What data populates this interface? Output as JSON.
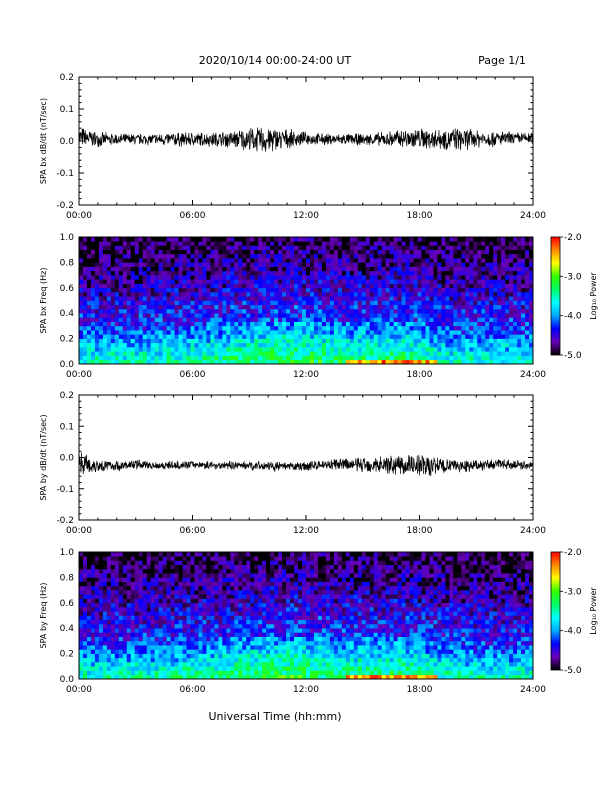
{
  "header": {
    "title": "2020/10/14  00:00-24:00 UT",
    "page": "Page 1/1"
  },
  "x_axis_title": "Universal Time (hh:mm)",
  "chart_data": [
    {
      "type": "line",
      "ylabel": "SPA bx dB/dt (nT/sec)",
      "xlim": [
        "00:00",
        "24:00"
      ],
      "ylim": [
        -0.2,
        0.2
      ],
      "x_ticks": [
        "00:00",
        "06:00",
        "12:00",
        "18:00",
        "24:00"
      ],
      "y_ticks": [
        "-0.2",
        "-0.1",
        "0.0",
        "0.1",
        "0.2"
      ],
      "series": [
        {
          "x_hours": [
            0,
            1,
            2,
            3,
            4,
            5,
            6,
            7,
            8,
            9,
            10,
            11,
            12,
            13,
            14,
            15,
            16,
            17,
            18,
            19,
            20,
            21,
            22,
            23,
            24
          ],
          "upper": [
            0.05,
            0.03,
            0.025,
            0.025,
            0.025,
            0.03,
            0.03,
            0.03,
            0.035,
            0.045,
            0.05,
            0.04,
            0.03,
            0.025,
            0.025,
            0.025,
            0.03,
            0.04,
            0.045,
            0.045,
            0.045,
            0.04,
            0.035,
            0.03,
            0.03
          ],
          "lower": [
            -0.025,
            -0.02,
            -0.015,
            -0.015,
            -0.015,
            -0.02,
            -0.02,
            -0.02,
            -0.025,
            -0.035,
            -0.045,
            -0.025,
            -0.015,
            -0.015,
            -0.015,
            -0.015,
            -0.02,
            -0.025,
            -0.03,
            -0.03,
            -0.035,
            -0.025,
            -0.02,
            -0.015,
            -0.01
          ]
        }
      ]
    },
    {
      "type": "heatmap",
      "ylabel": "SPA bx Freq (Hz)",
      "xlim": [
        "00:00",
        "24:00"
      ],
      "ylim": [
        0.0,
        1.0
      ],
      "x_ticks": [
        "00:00",
        "06:00",
        "12:00",
        "18:00",
        "24:00"
      ],
      "y_ticks": [
        "0.0",
        "0.2",
        "0.4",
        "0.6",
        "0.8",
        "1.0"
      ],
      "colorbar": {
        "label": "Log₁₀ Power",
        "range": [
          -5.0,
          -2.0
        ],
        "ticks": [
          "-2.0",
          "-3.0",
          "-4.0",
          "-5.0"
        ],
        "colors": [
          "#000000",
          "#6a00b8",
          "#0000ff",
          "#00aaff",
          "#00ffff",
          "#00ff66",
          "#33ff00",
          "#ffff00",
          "#ff8800",
          "#ff0000"
        ]
      }
    },
    {
      "type": "line",
      "ylabel": "SPA by dB/dt (nT/sec)",
      "xlim": [
        "00:00",
        "24:00"
      ],
      "ylim": [
        -0.2,
        0.2
      ],
      "x_ticks": [
        "00:00",
        "06:00",
        "12:00",
        "18:00",
        "24:00"
      ],
      "y_ticks": [
        "-0.2",
        "-0.1",
        "0.0",
        "0.1",
        "0.2"
      ],
      "series": [
        {
          "x_hours": [
            0,
            0.5,
            1,
            2,
            3,
            4,
            5,
            6,
            7,
            8,
            9,
            10,
            11,
            12,
            13,
            14,
            15,
            16,
            17,
            18,
            19,
            20,
            21,
            22,
            23,
            24
          ],
          "upper": [
            0.03,
            0.01,
            0.0,
            -0.01,
            -0.005,
            -0.01,
            -0.01,
            -0.01,
            -0.01,
            -0.01,
            -0.01,
            -0.01,
            -0.015,
            -0.01,
            -0.005,
            0.0,
            0.005,
            0.01,
            0.015,
            0.02,
            0.005,
            -0.005,
            -0.005,
            -0.005,
            -0.005,
            -0.01
          ],
          "lower": [
            -0.05,
            -0.06,
            -0.05,
            -0.045,
            -0.04,
            -0.04,
            -0.04,
            -0.035,
            -0.04,
            -0.04,
            -0.04,
            -0.045,
            -0.045,
            -0.045,
            -0.04,
            -0.045,
            -0.05,
            -0.055,
            -0.06,
            -0.07,
            -0.06,
            -0.05,
            -0.045,
            -0.04,
            -0.04,
            -0.04
          ]
        }
      ]
    },
    {
      "type": "heatmap",
      "ylabel": "SPA by Freq (Hz)",
      "xlim": [
        "00:00",
        "24:00"
      ],
      "ylim": [
        0.0,
        1.0
      ],
      "x_ticks": [
        "00:00",
        "06:00",
        "12:00",
        "18:00",
        "24:00"
      ],
      "y_ticks": [
        "0.0",
        "0.2",
        "0.4",
        "0.6",
        "0.8",
        "1.0"
      ],
      "colorbar": {
        "label": "Log₁₀ Power",
        "range": [
          -5.0,
          -2.0
        ],
        "ticks": [
          "-2.0",
          "-3.0",
          "-4.0",
          "-5.0"
        ],
        "colors": [
          "#000000",
          "#6a00b8",
          "#0000ff",
          "#00aaff",
          "#00ffff",
          "#00ff66",
          "#33ff00",
          "#ffff00",
          "#ff8800",
          "#ff0000"
        ]
      }
    }
  ]
}
